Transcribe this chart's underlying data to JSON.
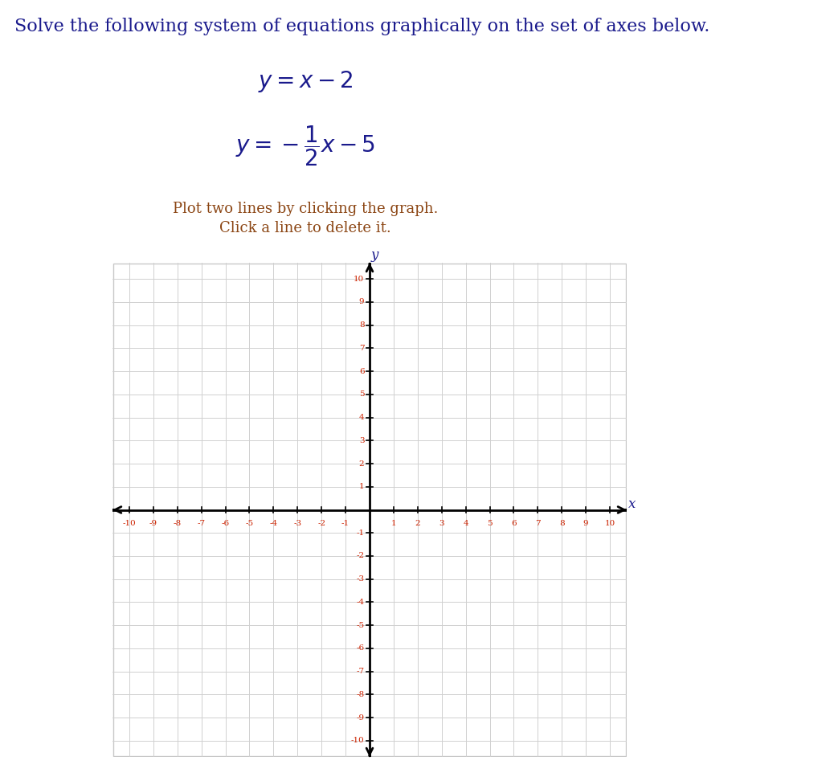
{
  "title": "Solve the following system of equations graphically on the set of axes below.",
  "title_color": "#1a1a8c",
  "title_fontsize": 16,
  "eq1_color": "#1a1a8c",
  "eq2_color": "#1a1a8c",
  "eq_fontsize": 20,
  "instruction_line1": "Plot two lines by clicking the graph.",
  "instruction_line2": "Click a line to delete it.",
  "instruction_color": "#8B4513",
  "instruction_fontsize": 13,
  "axis_range": [
    -10,
    10
  ],
  "grid_color": "#d0d0d0",
  "axis_color": "#000000",
  "tick_color": "#cc2200",
  "tick_fontsize": 7.5,
  "axis_label_color": "#1a1a8c",
  "axis_label_fontsize": 12,
  "background_color": "#ffffff",
  "graph_bg_color": "#ffffff",
  "graph_border_color": "#c8c8c8"
}
